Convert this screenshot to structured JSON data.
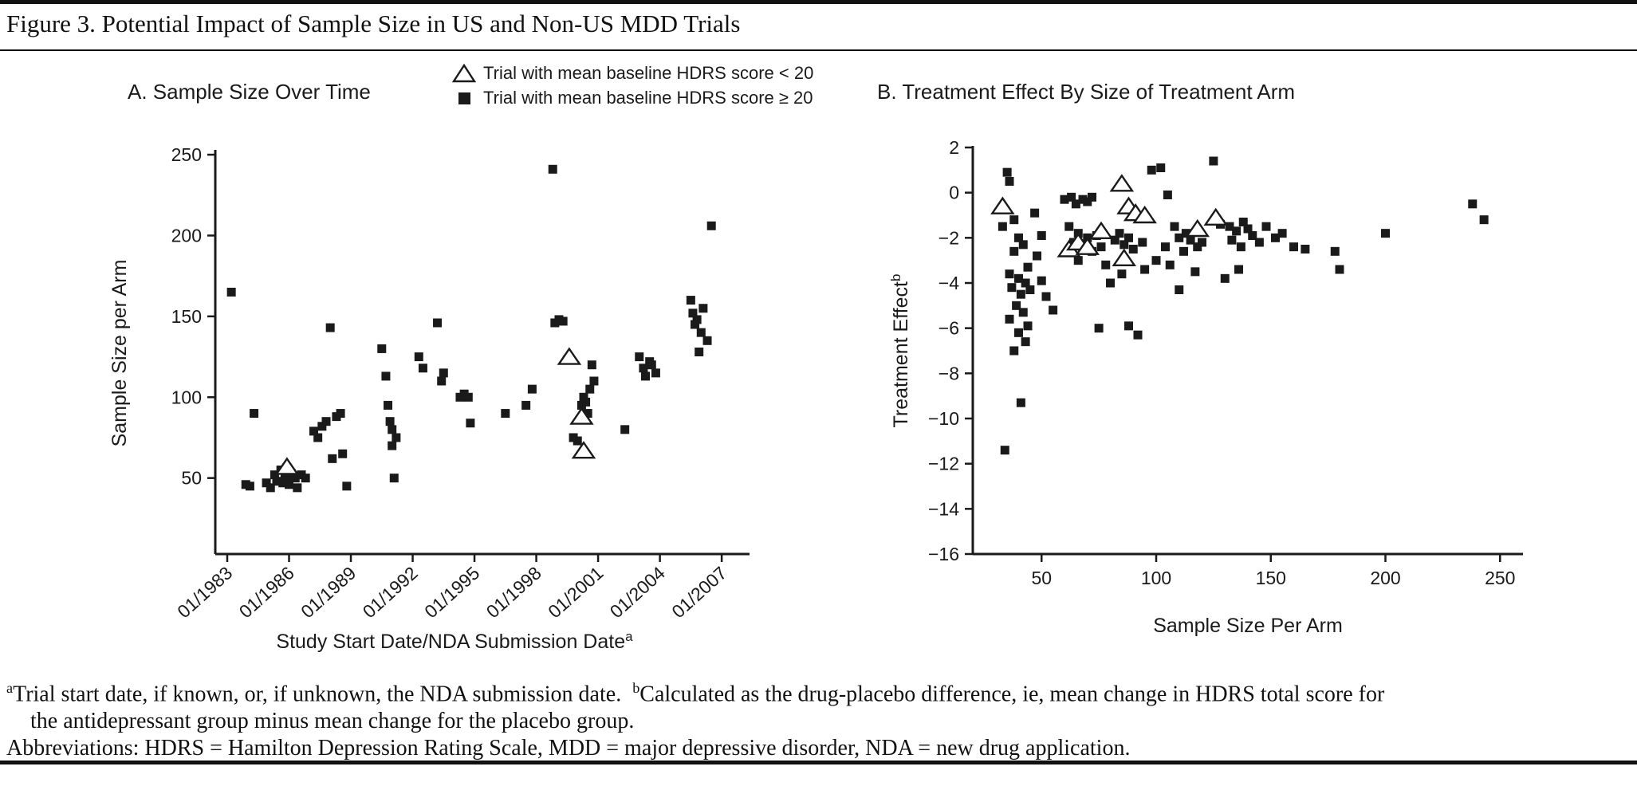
{
  "figure_title": "Figure 3. Potential Impact of Sample Size in US and Non-US MDD Trials",
  "colors": {
    "ink": "#1a1a1a",
    "background": "#ffffff"
  },
  "legend": {
    "items": [
      {
        "marker": "triangle-outline",
        "label": "Trial with mean baseline HDRS score < 20"
      },
      {
        "marker": "filled-square",
        "label": "Trial with mean baseline HDRS score ≥ 20"
      }
    ]
  },
  "chart_data": [
    {
      "type": "scatter",
      "panel": "A",
      "title": "A. Sample Size Over Time",
      "xlabel": "Study Start Date/NDA Submission Date",
      "xlabel_sup": "a",
      "ylabel": "Sample Size per Arm",
      "xlim": [
        1982.42,
        2008.35
      ],
      "ylim": [
        3,
        252
      ],
      "xtick_values": [
        1983,
        1986,
        1989,
        1992,
        1995,
        1998,
        2001,
        2004,
        2007
      ],
      "xtick_labels": [
        "01/1983",
        "01/1986",
        "01/1989",
        "01/1992",
        "01/1995",
        "01/1998",
        "01/2001",
        "01/2004",
        "01/2007"
      ],
      "ytick_values": [
        50,
        100,
        150,
        200,
        250
      ],
      "grid": false,
      "series": [
        {
          "name": "Trial with mean baseline HDRS score ≥ 20",
          "marker": "square",
          "points": [
            [
              1983.2,
              165
            ],
            [
              1983.9,
              46
            ],
            [
              1984.1,
              45
            ],
            [
              1984.3,
              90
            ],
            [
              1984.9,
              47
            ],
            [
              1985.1,
              44
            ],
            [
              1985.3,
              52
            ],
            [
              1985.4,
              48
            ],
            [
              1985.6,
              55
            ],
            [
              1985.7,
              47
            ],
            [
              1985.8,
              52
            ],
            [
              1985.9,
              50
            ],
            [
              1986.0,
              46
            ],
            [
              1986.1,
              53
            ],
            [
              1986.3,
              50
            ],
            [
              1986.4,
              44
            ],
            [
              1986.6,
              52
            ],
            [
              1986.8,
              50
            ],
            [
              1987.2,
              79
            ],
            [
              1987.4,
              75
            ],
            [
              1987.6,
              82
            ],
            [
              1987.8,
              85
            ],
            [
              1988.0,
              143
            ],
            [
              1988.1,
              62
            ],
            [
              1988.3,
              88
            ],
            [
              1988.5,
              90
            ],
            [
              1988.6,
              65
            ],
            [
              1988.8,
              45
            ],
            [
              1990.5,
              130
            ],
            [
              1990.7,
              113
            ],
            [
              1990.8,
              95
            ],
            [
              1990.9,
              85
            ],
            [
              1991.0,
              80
            ],
            [
              1991.0,
              70
            ],
            [
              1991.1,
              50
            ],
            [
              1991.2,
              75
            ],
            [
              1992.3,
              125
            ],
            [
              1992.5,
              118
            ],
            [
              1993.2,
              146
            ],
            [
              1993.4,
              110
            ],
            [
              1993.5,
              115
            ],
            [
              1994.3,
              100
            ],
            [
              1994.5,
              102
            ],
            [
              1994.7,
              100
            ],
            [
              1994.8,
              84
            ],
            [
              1996.5,
              90
            ],
            [
              1997.5,
              95
            ],
            [
              1997.8,
              105
            ],
            [
              1998.8,
              241
            ],
            [
              1998.9,
              146
            ],
            [
              1999.1,
              148
            ],
            [
              1999.3,
              147
            ],
            [
              1999.5,
              123
            ],
            [
              1999.8,
              75
            ],
            [
              2000.0,
              73
            ],
            [
              2000.2,
              95
            ],
            [
              2000.3,
              100
            ],
            [
              2000.4,
              97
            ],
            [
              2000.5,
              90
            ],
            [
              2000.6,
              105
            ],
            [
              2000.7,
              120
            ],
            [
              2000.8,
              110
            ],
            [
              2002.3,
              80
            ],
            [
              2003.0,
              125
            ],
            [
              2003.2,
              118
            ],
            [
              2003.3,
              113
            ],
            [
              2003.5,
              122
            ],
            [
              2003.6,
              120
            ],
            [
              2003.8,
              115
            ],
            [
              2005.5,
              160
            ],
            [
              2005.6,
              152
            ],
            [
              2005.7,
              145
            ],
            [
              2005.8,
              148
            ],
            [
              2005.9,
              128
            ],
            [
              2006.0,
              140
            ],
            [
              2006.1,
              155
            ],
            [
              2006.3,
              135
            ],
            [
              2006.5,
              206
            ]
          ]
        },
        {
          "name": "Trial with mean baseline HDRS score < 20",
          "marker": "triangle",
          "points": [
            [
              1985.9,
              57
            ],
            [
              1999.6,
              125
            ],
            [
              2000.2,
              88
            ],
            [
              2000.3,
              67
            ]
          ]
        }
      ]
    },
    {
      "type": "scatter",
      "panel": "B",
      "title": "B. Treatment Effect By Size of Treatment Arm",
      "xlabel": "Sample Size Per Arm",
      "ylabel": "Treatment Effect",
      "ylabel_sup": "b",
      "xlim": [
        20,
        260
      ],
      "ylim": [
        -16,
        2
      ],
      "xtick_values": [
        50,
        100,
        150,
        200,
        250
      ],
      "ytick_values": [
        2,
        0,
        -2,
        -4,
        -6,
        -8,
        -10,
        -12,
        -14,
        -16
      ],
      "grid": false,
      "series": [
        {
          "name": "Trial with mean baseline HDRS score ≥ 20",
          "marker": "square",
          "points": [
            [
              35,
              0.9
            ],
            [
              36,
              0.5
            ],
            [
              38,
              -1.2
            ],
            [
              33,
              -1.5
            ],
            [
              40,
              -2.0
            ],
            [
              42,
              -2.3
            ],
            [
              38,
              -2.6
            ],
            [
              36,
              -3.6
            ],
            [
              40,
              -3.8
            ],
            [
              43,
              -4.0
            ],
            [
              37,
              -4.2
            ],
            [
              41,
              -4.5
            ],
            [
              45,
              -4.3
            ],
            [
              44,
              -3.3
            ],
            [
              39,
              -5.0
            ],
            [
              42,
              -5.3
            ],
            [
              36,
              -5.6
            ],
            [
              44,
              -5.9
            ],
            [
              40,
              -6.2
            ],
            [
              43,
              -6.6
            ],
            [
              38,
              -7.0
            ],
            [
              41,
              -9.3
            ],
            [
              34,
              -11.4
            ],
            [
              47,
              -0.9
            ],
            [
              48,
              -2.8
            ],
            [
              50,
              -1.9
            ],
            [
              50,
              -3.9
            ],
            [
              52,
              -4.6
            ],
            [
              55,
              -5.2
            ],
            [
              60,
              -0.3
            ],
            [
              63,
              -0.2
            ],
            [
              65,
              -0.5
            ],
            [
              68,
              -0.3
            ],
            [
              70,
              -0.4
            ],
            [
              72,
              -0.2
            ],
            [
              62,
              -1.5
            ],
            [
              66,
              -1.8
            ],
            [
              70,
              -2.0
            ],
            [
              74,
              -1.9
            ],
            [
              64,
              -2.2
            ],
            [
              68,
              -2.5
            ],
            [
              72,
              -2.6
            ],
            [
              76,
              -2.4
            ],
            [
              66,
              -3.0
            ],
            [
              78,
              -3.2
            ],
            [
              82,
              -2.1
            ],
            [
              86,
              -2.3
            ],
            [
              90,
              -2.5
            ],
            [
              94,
              -2.2
            ],
            [
              84,
              -1.8
            ],
            [
              88,
              -2.0
            ],
            [
              80,
              -4.0
            ],
            [
              85,
              -3.6
            ],
            [
              95,
              -3.4
            ],
            [
              100,
              -3.0
            ],
            [
              75,
              -6.0
            ],
            [
              88,
              -5.9
            ],
            [
              92,
              -6.3
            ],
            [
              98,
              1.0
            ],
            [
              102,
              1.1
            ],
            [
              105,
              -0.1
            ],
            [
              108,
              -1.5
            ],
            [
              110,
              -2.0
            ],
            [
              104,
              -2.4
            ],
            [
              112,
              -2.6
            ],
            [
              106,
              -3.2
            ],
            [
              115,
              -2.1
            ],
            [
              118,
              -2.4
            ],
            [
              120,
              -2.2
            ],
            [
              113,
              -1.8
            ],
            [
              110,
              -4.3
            ],
            [
              117,
              -3.5
            ],
            [
              125,
              1.4
            ],
            [
              128,
              -1.4
            ],
            [
              132,
              -1.5
            ],
            [
              135,
              -1.7
            ],
            [
              138,
              -1.3
            ],
            [
              140,
              -1.6
            ],
            [
              133,
              -2.1
            ],
            [
              137,
              -2.4
            ],
            [
              142,
              -1.9
            ],
            [
              145,
              -2.2
            ],
            [
              130,
              -3.8
            ],
            [
              136,
              -3.4
            ],
            [
              148,
              -1.5
            ],
            [
              152,
              -2.0
            ],
            [
              155,
              -1.8
            ],
            [
              160,
              -2.4
            ],
            [
              165,
              -2.5
            ],
            [
              178,
              -2.6
            ],
            [
              180,
              -3.4
            ],
            [
              200,
              -1.8
            ],
            [
              238,
              -0.5
            ],
            [
              243,
              -1.2
            ]
          ]
        },
        {
          "name": "Trial with mean baseline HDRS score < 20",
          "marker": "triangle",
          "points": [
            [
              33,
              -0.6
            ],
            [
              62,
              -2.5
            ],
            [
              66,
              -2.2
            ],
            [
              70,
              -2.4
            ],
            [
              76,
              -1.7
            ],
            [
              85,
              0.4
            ],
            [
              88,
              -0.6
            ],
            [
              91,
              -0.9
            ],
            [
              95,
              -1.0
            ],
            [
              86,
              -2.9
            ],
            [
              118,
              -1.6
            ],
            [
              126,
              -1.1
            ]
          ]
        }
      ]
    }
  ],
  "footnotes": {
    "sup_a": "a",
    "a_text": "Trial start date, if known, or, if unknown, the NDA submission date.",
    "sup_b": "b",
    "b_text": "Calculated as the drug-placebo difference, ie, mean change in HDRS total score for",
    "b_text_cont": "the antidepressant group minus mean change for the placebo group.",
    "abbreviations": "Abbreviations: HDRS = Hamilton Depression Rating Scale, MDD = major depressive disorder, NDA = new drug application."
  }
}
